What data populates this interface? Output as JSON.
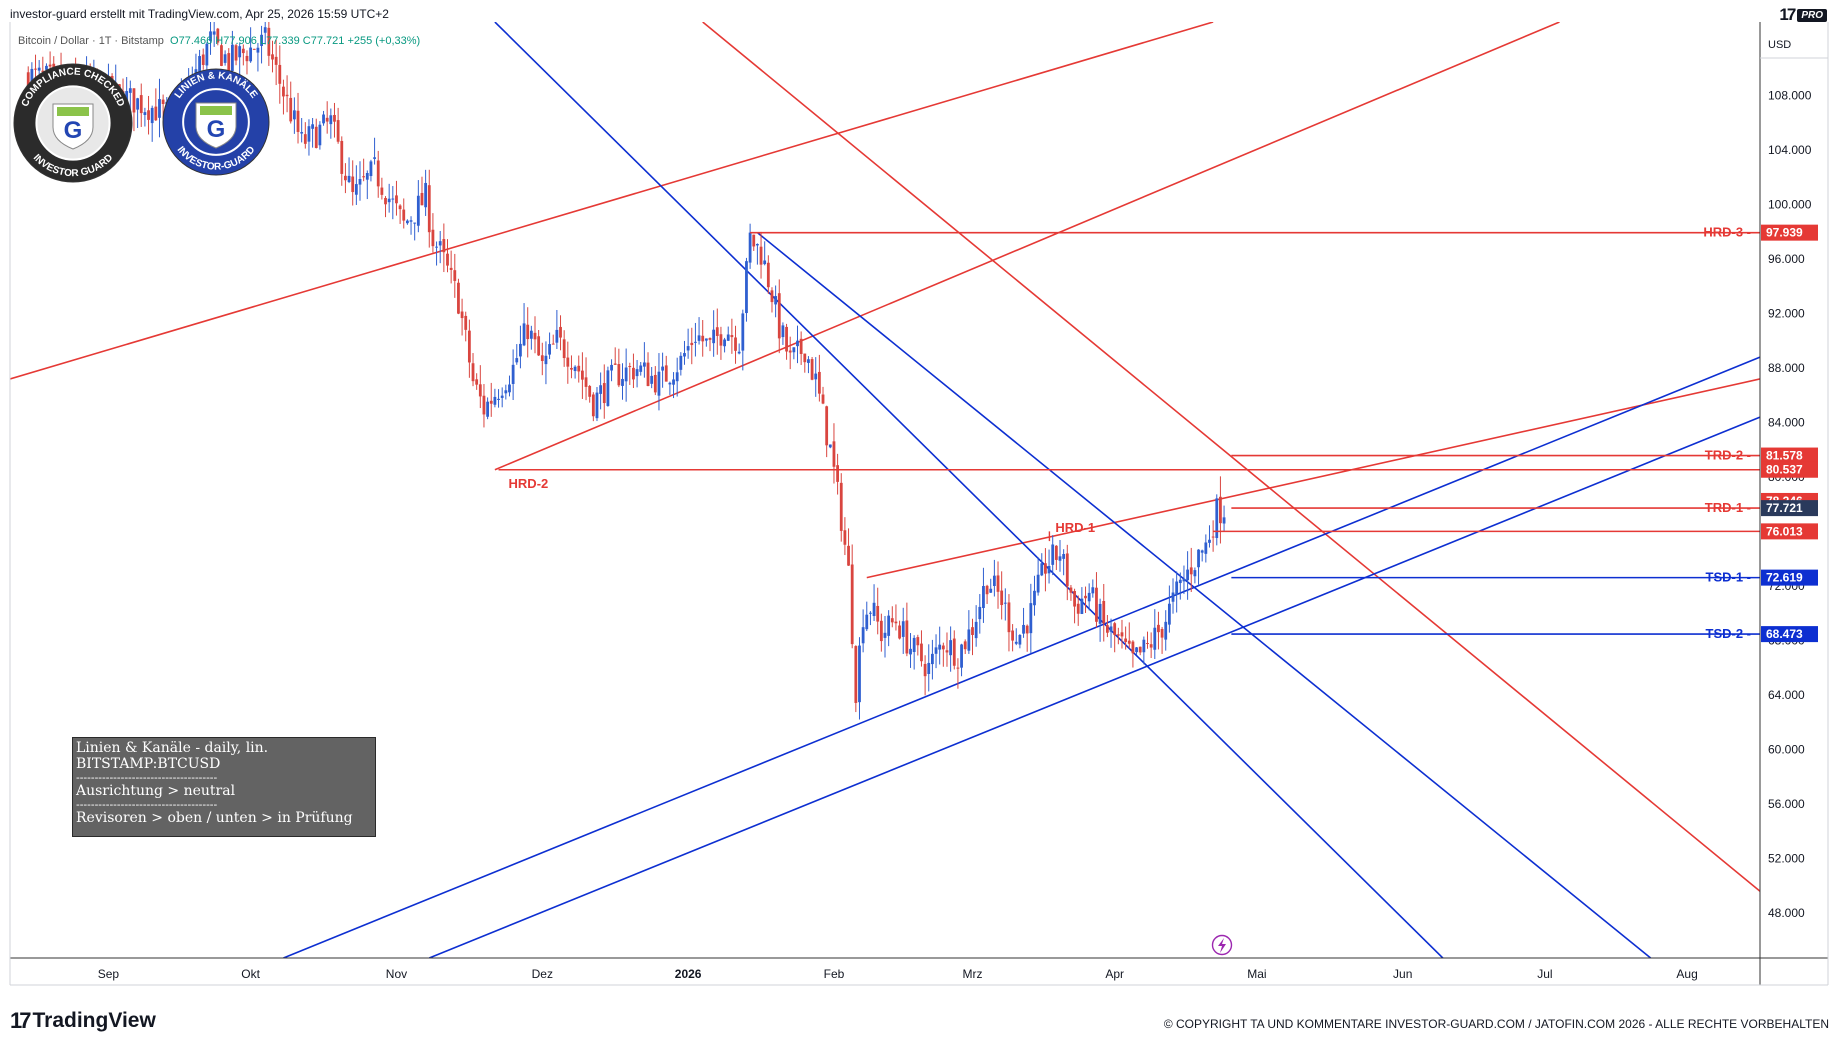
{
  "header": {
    "caption": "investor-guard erstellt mit TradingView.com, Apr 25, 2026 15:59 UTC+2",
    "pro_badge": "PRO"
  },
  "symbol_info": {
    "symbol_text": "Bitcoin / Dollar · 1T · Bitstamp",
    "open": "O77.466",
    "high": "H77.906",
    "low": "L77.339",
    "close": "C77.721",
    "change": "+255 (+0,33%)"
  },
  "badges": {
    "compliance": {
      "top_text": "COMPLIANCE CHECKED",
      "bottom_text": "INVESTOR GUARD",
      "letter": "G"
    },
    "linien": {
      "top_text": "LINIEN & KANÄLE",
      "bottom_text": "INVESTOR-GUARD",
      "letter": "G"
    }
  },
  "info_box": {
    "line1": "Linien & Kanäle - daily, lin.",
    "line2": "BITSTAMP:BTCUSD",
    "sep1": "--------------------------------------",
    "line3": "Ausrichtung > neutral",
    "sep2": "--------------------------------------",
    "line4": "Revisoren > oben / unten > in Prüfung"
  },
  "footer": {
    "logo_text": "TradingView",
    "copyright": "© COPYRIGHT TA UND KOMMENTARE INVESTOR-GUARD.COM / JATOFIN.COM 2026 - ALLE RECHTE VORBEHALTEN"
  },
  "colors": {
    "red": "#e53935",
    "blue": "#0d2fd1",
    "up": "#2f5fd0",
    "down": "#d9453f",
    "current_price": "#2a3a5c"
  },
  "chart_data": {
    "type": "candlestick",
    "symbol": "BITSTAMP:BTCUSD",
    "currency": "USD",
    "x_labels": [
      "Sep",
      "Okt",
      "Nov",
      "Dez",
      "2026",
      "Feb",
      "Mrz",
      "Apr",
      "Mai",
      "Jun",
      "Jul",
      "Aug"
    ],
    "y_ticks": [
      48000,
      52000,
      56000,
      60000,
      64000,
      68000,
      72000,
      76000,
      80000,
      84000,
      88000,
      92000,
      96000,
      100000,
      104000,
      108000
    ],
    "y_tick_labels": [
      "48.000",
      "52.000",
      "56.000",
      "60.000",
      "64.000",
      "68.000",
      "72.000",
      "76.000",
      "80.000",
      "84.000",
      "88.000",
      "92.000",
      "96.000",
      "100.000",
      "104.000",
      "108.000"
    ],
    "ylim": [
      44700,
      113400
    ],
    "price_path": [
      [
        5,
        109500
      ],
      [
        25,
        108500
      ],
      [
        45,
        106500
      ],
      [
        55,
        112000
      ],
      [
        60,
        110500
      ],
      [
        70,
        112000
      ],
      [
        80,
        104500
      ],
      [
        88,
        106000
      ],
      [
        94,
        100500
      ],
      [
        100,
        102500
      ],
      [
        108,
        98500
      ],
      [
        114,
        100500
      ],
      [
        116,
        97500
      ],
      [
        118,
        96500
      ],
      [
        123,
        93000
      ],
      [
        127,
        87000
      ],
      [
        130,
        85000
      ],
      [
        134,
        86500
      ],
      [
        138,
        88000
      ],
      [
        142,
        91000
      ],
      [
        146,
        88000
      ],
      [
        150,
        90000
      ],
      [
        155,
        88500
      ],
      [
        160,
        85500
      ],
      [
        166,
        87500
      ],
      [
        172,
        88000
      ],
      [
        178,
        87000
      ],
      [
        184,
        88500
      ],
      [
        188,
        90500
      ],
      [
        192,
        89500
      ],
      [
        196,
        91000
      ],
      [
        200,
        90000
      ],
      [
        203,
        97500
      ],
      [
        206,
        96500
      ],
      [
        209,
        93500
      ],
      [
        211,
        91000
      ],
      [
        214,
        88500
      ],
      [
        218,
        89500
      ],
      [
        221,
        87000
      ],
      [
        223,
        84500
      ],
      [
        225,
        82000
      ],
      [
        228,
        77000
      ],
      [
        230,
        73000
      ],
      [
        232,
        64500
      ],
      [
        234,
        70000
      ],
      [
        236,
        70500
      ],
      [
        239,
        68500
      ],
      [
        243,
        69500
      ],
      [
        247,
        67500
      ],
      [
        252,
        66000
      ],
      [
        256,
        68000
      ],
      [
        260,
        67000
      ],
      [
        264,
        69000
      ],
      [
        268,
        72500
      ],
      [
        272,
        71000
      ],
      [
        276,
        68000
      ],
      [
        280,
        70000
      ],
      [
        284,
        73500
      ],
      [
        288,
        74500
      ],
      [
        292,
        70500
      ],
      [
        296,
        71500
      ],
      [
        300,
        69000
      ],
      [
        304,
        68000
      ],
      [
        308,
        66500
      ],
      [
        312,
        67500
      ],
      [
        316,
        69000
      ],
      [
        320,
        71500
      ],
      [
        324,
        73500
      ],
      [
        328,
        75000
      ],
      [
        331,
        77500
      ],
      [
        333,
        77721
      ]
    ],
    "levels": [
      {
        "label": "HRD-3",
        "value": 97939,
        "price_label": "97.939",
        "color": "red"
      },
      {
        "label": "TRD-2",
        "value": 81578,
        "price_label": "81.578",
        "color": "red"
      },
      {
        "label": "",
        "value": 80537,
        "price_label": "80.537",
        "color": "red"
      },
      {
        "label": "",
        "value": 78246,
        "price_label": "78.246",
        "color": "red"
      },
      {
        "label": "TRD-1",
        "value": 77721,
        "price_label": "77.721",
        "color": "current"
      },
      {
        "label": "",
        "value": 76013,
        "price_label": "76.013",
        "color": "red"
      },
      {
        "label": "TSD-1",
        "value": 72619,
        "price_label": "72.619",
        "color": "blue"
      },
      {
        "label": "TSD-2",
        "value": 68473,
        "price_label": "68.473",
        "color": "blue"
      }
    ],
    "horizontal_lines": [
      {
        "from": 203,
        "value": 97939,
        "color": "red"
      },
      {
        "from": 134,
        "value": 80537,
        "color": "red"
      },
      {
        "from": 335,
        "value": 81578,
        "color": "red"
      },
      {
        "from": 335,
        "value": 77721,
        "color": "red"
      },
      {
        "from": 330,
        "value": 76013,
        "color": "red"
      },
      {
        "from": 335,
        "value": 72619,
        "color": "blue"
      },
      {
        "from": 335,
        "value": 68473,
        "color": "blue"
      }
    ],
    "annotations": [
      {
        "text": "HRD-2",
        "x": 134,
        "value": 79200,
        "color": "red"
      },
      {
        "text": "HRD-1",
        "x": 284,
        "value": 75950,
        "color": "red"
      }
    ],
    "trend_lines": [
      {
        "p1": [
          0,
          87200
        ],
        "p2": [
          330,
          113400
        ],
        "color": "red"
      },
      {
        "p1": [
          133,
          80537
        ],
        "p2": [
          425,
          113400
        ],
        "color": "red"
      },
      {
        "p1": [
          235,
          72620
        ],
        "p2": [
          480,
          87200
        ],
        "color": "red"
      },
      {
        "p1": [
          190,
          113400
        ],
        "p2": [
          480,
          49600
        ],
        "color": "red"
      },
      {
        "p1": [
          133,
          113400
        ],
        "p2": [
          393,
          44700
        ],
        "color": "blue"
      },
      {
        "p1": [
          205,
          97939
        ],
        "p2": [
          450,
          44700
        ],
        "color": "blue"
      },
      {
        "p1": [
          75,
          44700
        ],
        "p2": [
          480,
          88800
        ],
        "color": "blue"
      },
      {
        "p1": [
          115,
          44700
        ],
        "p2": [
          480,
          84400
        ],
        "color": "blue"
      }
    ],
    "x_label_positions": [
      27,
      66,
      106,
      146,
      186,
      226,
      264,
      303,
      342,
      382,
      421,
      460
    ],
    "xlim": [
      0,
      480
    ]
  }
}
